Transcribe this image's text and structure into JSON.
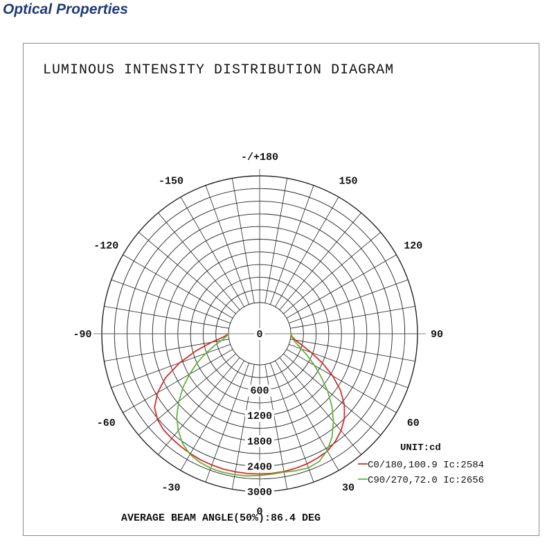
{
  "page": {
    "section_title": "Optical Properties"
  },
  "chart_data": {
    "type": "polar",
    "title": "LUMINOUS INTENSITY DISTRIBUTION DIAGRAM",
    "unit_label": "UNIT:cd",
    "footer": "AVERAGE BEAM ANGLE(50%):86.4 DEG",
    "angle_labels": [
      {
        "angle": 0,
        "text": "0"
      },
      {
        "angle": 30,
        "text": "30"
      },
      {
        "angle": 60,
        "text": "60"
      },
      {
        "angle": 90,
        "text": "90"
      },
      {
        "angle": 120,
        "text": "120"
      },
      {
        "angle": 150,
        "text": "150"
      },
      {
        "angle": 180,
        "text": "-/+180"
      },
      {
        "angle": -150,
        "text": "-150"
      },
      {
        "angle": -120,
        "text": "-120"
      },
      {
        "angle": -90,
        "text": "-90"
      },
      {
        "angle": -60,
        "text": "-60"
      },
      {
        "angle": -30,
        "text": "-30"
      }
    ],
    "radial_ticks": [
      {
        "value": 0,
        "text": "0"
      },
      {
        "value": 600,
        "text": "600"
      },
      {
        "value": 1200,
        "text": "1200"
      },
      {
        "value": 1800,
        "text": "1800"
      },
      {
        "value": 2400,
        "text": "2400"
      },
      {
        "value": 3000,
        "text": "3000"
      }
    ],
    "r_max": 3000,
    "series": [
      {
        "name": "C0/180,100.9 Ic:2584",
        "color": "#d42a2a",
        "points": [
          [
            -90,
            0
          ],
          [
            -85,
            120
          ],
          [
            -80,
            420
          ],
          [
            -75,
            820
          ],
          [
            -70,
            1280
          ],
          [
            -65,
            1720
          ],
          [
            -60,
            2050
          ],
          [
            -55,
            2300
          ],
          [
            -50,
            2420
          ],
          [
            -45,
            2480
          ],
          [
            -40,
            2500
          ],
          [
            -35,
            2520
          ],
          [
            -30,
            2540
          ],
          [
            -25,
            2560
          ],
          [
            -20,
            2570
          ],
          [
            -15,
            2580
          ],
          [
            -10,
            2582
          ],
          [
            -5,
            2584
          ],
          [
            0,
            2584
          ],
          [
            5,
            2580
          ],
          [
            10,
            2575
          ],
          [
            15,
            2560
          ],
          [
            20,
            2540
          ],
          [
            25,
            2510
          ],
          [
            30,
            2470
          ],
          [
            35,
            2380
          ],
          [
            40,
            2260
          ],
          [
            45,
            2100
          ],
          [
            50,
            1880
          ],
          [
            55,
            1600
          ],
          [
            60,
            1260
          ],
          [
            65,
            900
          ],
          [
            70,
            560
          ],
          [
            75,
            300
          ],
          [
            80,
            120
          ],
          [
            85,
            30
          ],
          [
            90,
            0
          ]
        ]
      },
      {
        "name": "C90/270,72.0 Ic:2656",
        "color": "#62b23a",
        "points": [
          [
            -90,
            0
          ],
          [
            -85,
            60
          ],
          [
            -80,
            180
          ],
          [
            -75,
            380
          ],
          [
            -70,
            620
          ],
          [
            -65,
            900
          ],
          [
            -60,
            1180
          ],
          [
            -55,
            1480
          ],
          [
            -50,
            1760
          ],
          [
            -45,
            2040
          ],
          [
            -40,
            2260
          ],
          [
            -35,
            2440
          ],
          [
            -30,
            2560
          ],
          [
            -25,
            2620
          ],
          [
            -20,
            2650
          ],
          [
            -15,
            2656
          ],
          [
            -10,
            2650
          ],
          [
            -5,
            2640
          ],
          [
            0,
            2620
          ],
          [
            5,
            2600
          ],
          [
            10,
            2590
          ],
          [
            15,
            2620
          ],
          [
            20,
            2640
          ],
          [
            25,
            2600
          ],
          [
            30,
            2460
          ],
          [
            35,
            2250
          ],
          [
            40,
            1980
          ],
          [
            45,
            1680
          ],
          [
            50,
            1360
          ],
          [
            55,
            1040
          ],
          [
            60,
            760
          ],
          [
            65,
            520
          ],
          [
            70,
            320
          ],
          [
            75,
            170
          ],
          [
            80,
            70
          ],
          [
            85,
            20
          ],
          [
            90,
            0
          ]
        ]
      }
    ]
  }
}
